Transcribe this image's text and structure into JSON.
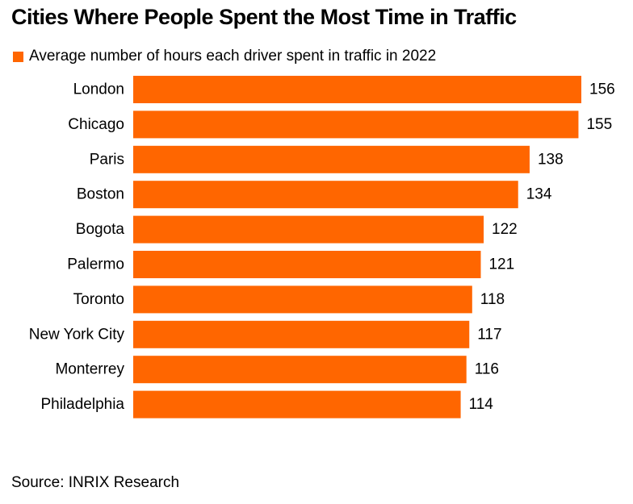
{
  "chart_data": {
    "type": "bar",
    "orientation": "horizontal",
    "title": "Cities Where People Spent the Most Time in Traffic",
    "legend": "top-left",
    "grid": false,
    "series": [
      {
        "name": "Average number of hours each driver spent in traffic in 2022",
        "color": "#ff6600",
        "values": [
          156,
          155,
          138,
          134,
          122,
          121,
          118,
          117,
          116,
          114
        ]
      }
    ],
    "categories": [
      "London",
      "Chicago",
      "Paris",
      "Boston",
      "Bogota",
      "Palermo",
      "Toronto",
      "New York City",
      "Monterrey",
      "Philadelphia"
    ],
    "xlim": [
      0,
      156
    ],
    "source": "Source: INRIX Research"
  }
}
